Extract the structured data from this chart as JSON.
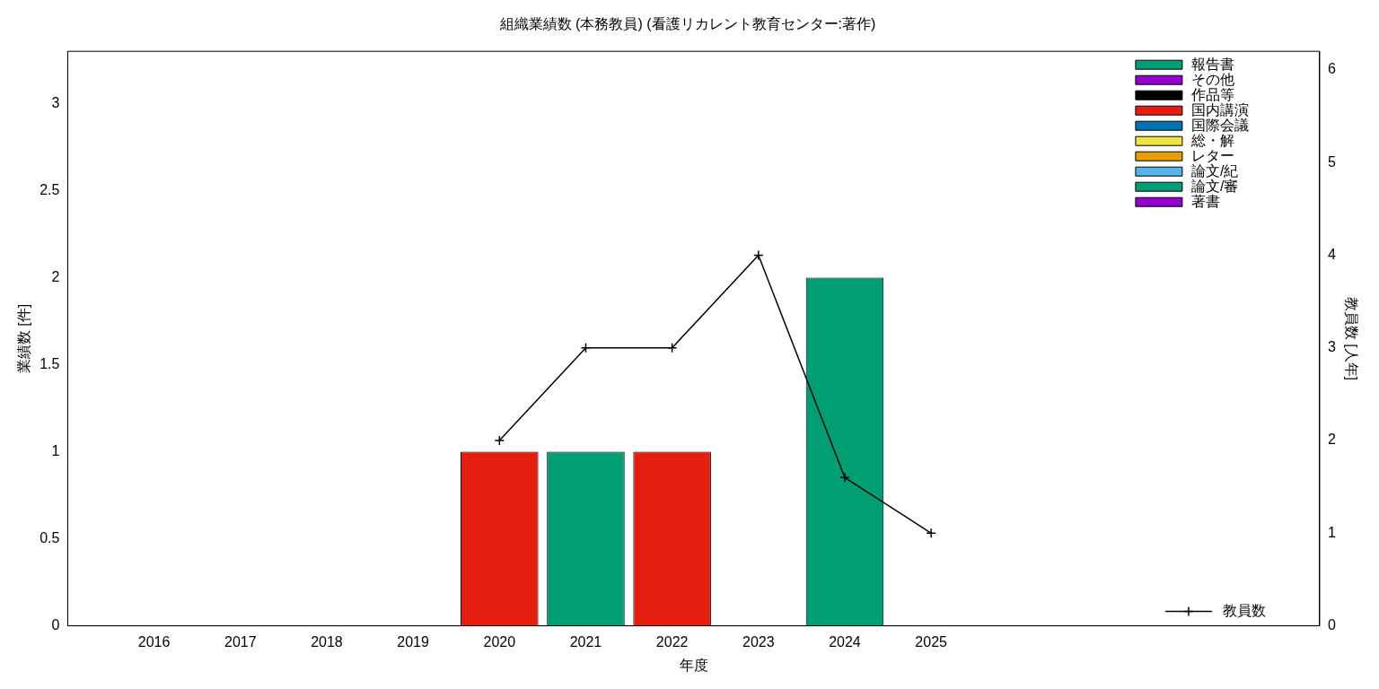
{
  "chart_data": {
    "type": "bar",
    "title": "組織業績数 (本務教員) (看護リカレント教育センター:著作)",
    "xlabel": "年度",
    "ylabel": "業績数 [件]",
    "y2label": "教員数 [人年]",
    "x": [
      2016,
      2017,
      2018,
      2019,
      2020,
      2021,
      2022,
      2023,
      2024,
      2025
    ],
    "series": [
      {
        "name": "報告書",
        "color": "#009e73",
        "values": [
          0,
          0,
          0,
          0,
          0,
          1,
          0,
          0,
          2,
          0
        ]
      },
      {
        "name": "その他",
        "color": "#9400d3",
        "values": [
          0,
          0,
          0,
          0,
          0,
          0,
          0,
          0,
          0,
          0
        ]
      },
      {
        "name": "作品等",
        "color": "#000000",
        "values": [
          0,
          0,
          0,
          0,
          0,
          0,
          0,
          0,
          0,
          0
        ]
      },
      {
        "name": "国内講演",
        "color": "#e51e10",
        "values": [
          0,
          0,
          0,
          0,
          1,
          0,
          1,
          0,
          0,
          0
        ]
      },
      {
        "name": "国際会議",
        "color": "#0072b2",
        "values": [
          0,
          0,
          0,
          0,
          0,
          0,
          0,
          0,
          0,
          0
        ]
      },
      {
        "name": "総・解",
        "color": "#f0e442",
        "values": [
          0,
          0,
          0,
          0,
          0,
          0,
          0,
          0,
          0,
          0
        ]
      },
      {
        "name": "レター",
        "color": "#e69f00",
        "values": [
          0,
          0,
          0,
          0,
          0,
          0,
          0,
          0,
          0,
          0
        ]
      },
      {
        "name": "論文/紀",
        "color": "#56b4e9",
        "values": [
          0,
          0,
          0,
          0,
          0,
          0,
          0,
          0,
          0,
          0
        ]
      },
      {
        "name": "論文/審",
        "color": "#009e73",
        "values": [
          0,
          0,
          0,
          0,
          0,
          0,
          0,
          0,
          0,
          0
        ]
      },
      {
        "name": "著書",
        "color": "#9400d3",
        "values": [
          0,
          0,
          0,
          0,
          0,
          0,
          0,
          0,
          0,
          0
        ]
      },
      {
        "name": "教員数",
        "type": "line",
        "axis": "y2",
        "color": "#000000",
        "x": [
          2020,
          2021,
          2022,
          2023,
          2024,
          2025
        ],
        "values": [
          2,
          3,
          3,
          4,
          1.6,
          1
        ],
        "marker": "cross",
        "line_style": "solid"
      }
    ],
    "stacked": true,
    "xlim": [
      2015,
      2029.5
    ],
    "xticks": [
      2016,
      2017,
      2018,
      2019,
      2020,
      2021,
      2022,
      2023,
      2024,
      2025
    ],
    "ylim": [
      0,
      3.3
    ],
    "yticks": [
      0,
      0.5,
      1,
      1.5,
      2,
      2.5,
      3
    ],
    "y2lim": [
      0,
      6.2
    ],
    "y2ticks": [
      0,
      1,
      2,
      3,
      4,
      5,
      6
    ],
    "grid": false,
    "legend": "top right"
  }
}
